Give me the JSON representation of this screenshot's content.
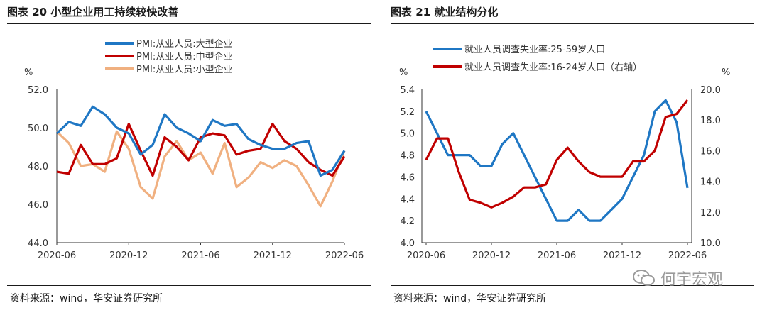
{
  "left": {
    "title": "图表 20  小型企业用工持续较快改善",
    "source": "资料来源：wind，华安证券研究所",
    "chart_data": {
      "type": "line",
      "unit_label": "%",
      "ylim": [
        44.0,
        52.0
      ],
      "yticks": [
        "52.0",
        "50.0",
        "48.0",
        "46.0",
        "44.0"
      ],
      "ytick_values": [
        52,
        50,
        48,
        46,
        44
      ],
      "xticks": [
        "2020-06",
        "2020-12",
        "2021-06",
        "2021-12",
        "2022-06"
      ],
      "xtick_index": [
        0,
        6,
        12,
        18,
        24
      ],
      "n_points": 25,
      "series": [
        {
          "name": "PMI:从业人员:大型企业",
          "color": "#1f77c4",
          "values": [
            49.7,
            50.3,
            50.1,
            51.1,
            50.7,
            50.0,
            49.7,
            48.6,
            49.1,
            50.7,
            50.0,
            49.7,
            49.3,
            50.4,
            50.1,
            50.2,
            49.4,
            49.1,
            48.9,
            48.9,
            49.2,
            49.3,
            47.5,
            47.8,
            48.8
          ]
        },
        {
          "name": "PMI:从业人员:中型企业",
          "color": "#c00000",
          "values": [
            47.7,
            47.6,
            49.1,
            48.1,
            48.1,
            48.4,
            50.2,
            48.8,
            47.5,
            49.5,
            49.0,
            48.3,
            49.5,
            49.7,
            49.6,
            48.6,
            48.8,
            48.9,
            50.2,
            49.3,
            48.9,
            48.2,
            47.8,
            47.5,
            48.5
          ]
        },
        {
          "name": "PMI:从业人员:小型企业",
          "color": "#f0b080",
          "values": [
            49.8,
            49.2,
            48.0,
            48.1,
            47.7,
            49.8,
            48.9,
            46.9,
            46.3,
            48.5,
            49.3,
            48.3,
            48.7,
            47.6,
            49.2,
            46.9,
            47.4,
            48.2,
            47.9,
            48.3,
            48.0,
            47.0,
            45.9,
            47.2,
            48.8
          ]
        }
      ]
    }
  },
  "right": {
    "title": "图表 21  就业结构分化",
    "source": "资料来源：wind，华安证券研究所",
    "chart_data": {
      "type": "line",
      "unit_label_left": "%",
      "unit_label_right": "%",
      "ylim_left": [
        4.0,
        5.4
      ],
      "ylim_right": [
        10.0,
        20.0
      ],
      "yticks_left": [
        "5.4",
        "5.2",
        "5.0",
        "4.8",
        "4.6",
        "4.4",
        "4.2",
        "4.0"
      ],
      "ytick_values_left": [
        5.4,
        5.2,
        5.0,
        4.8,
        4.6,
        4.4,
        4.2,
        4.0
      ],
      "yticks_right": [
        "20.0",
        "18.0",
        "16.0",
        "14.0",
        "12.0",
        "10.0"
      ],
      "ytick_values_right": [
        20,
        18,
        16,
        14,
        12,
        10
      ],
      "xticks": [
        "2020-06",
        "2020-12",
        "2021-06",
        "2021-12",
        "2022-06"
      ],
      "xtick_index": [
        0,
        6,
        12,
        18,
        24
      ],
      "n_points": 25,
      "series": [
        {
          "name": "就业人员调查失业率:25-59岁人口",
          "color": "#1f77c4",
          "axis": "left",
          "values": [
            5.2,
            5.0,
            4.8,
            4.8,
            4.8,
            4.7,
            4.7,
            4.9,
            5.0,
            4.8,
            4.6,
            4.4,
            4.2,
            4.2,
            4.3,
            4.2,
            4.2,
            4.3,
            4.4,
            4.6,
            4.8,
            5.2,
            5.3,
            5.1,
            4.5
          ]
        },
        {
          "name": "就业人员调查失业率:16-24岁人口（右轴）",
          "color": "#c00000",
          "axis": "right",
          "values": [
            15.4,
            16.8,
            16.8,
            14.6,
            12.8,
            12.6,
            12.3,
            12.6,
            13.0,
            13.6,
            13.6,
            13.8,
            15.4,
            16.2,
            15.3,
            14.6,
            14.3,
            14.3,
            14.3,
            15.3,
            15.3,
            16.0,
            18.2,
            18.4,
            19.3
          ]
        }
      ]
    }
  },
  "watermark": {
    "text": "何宇宏观",
    "icon": "wechat-icon"
  }
}
